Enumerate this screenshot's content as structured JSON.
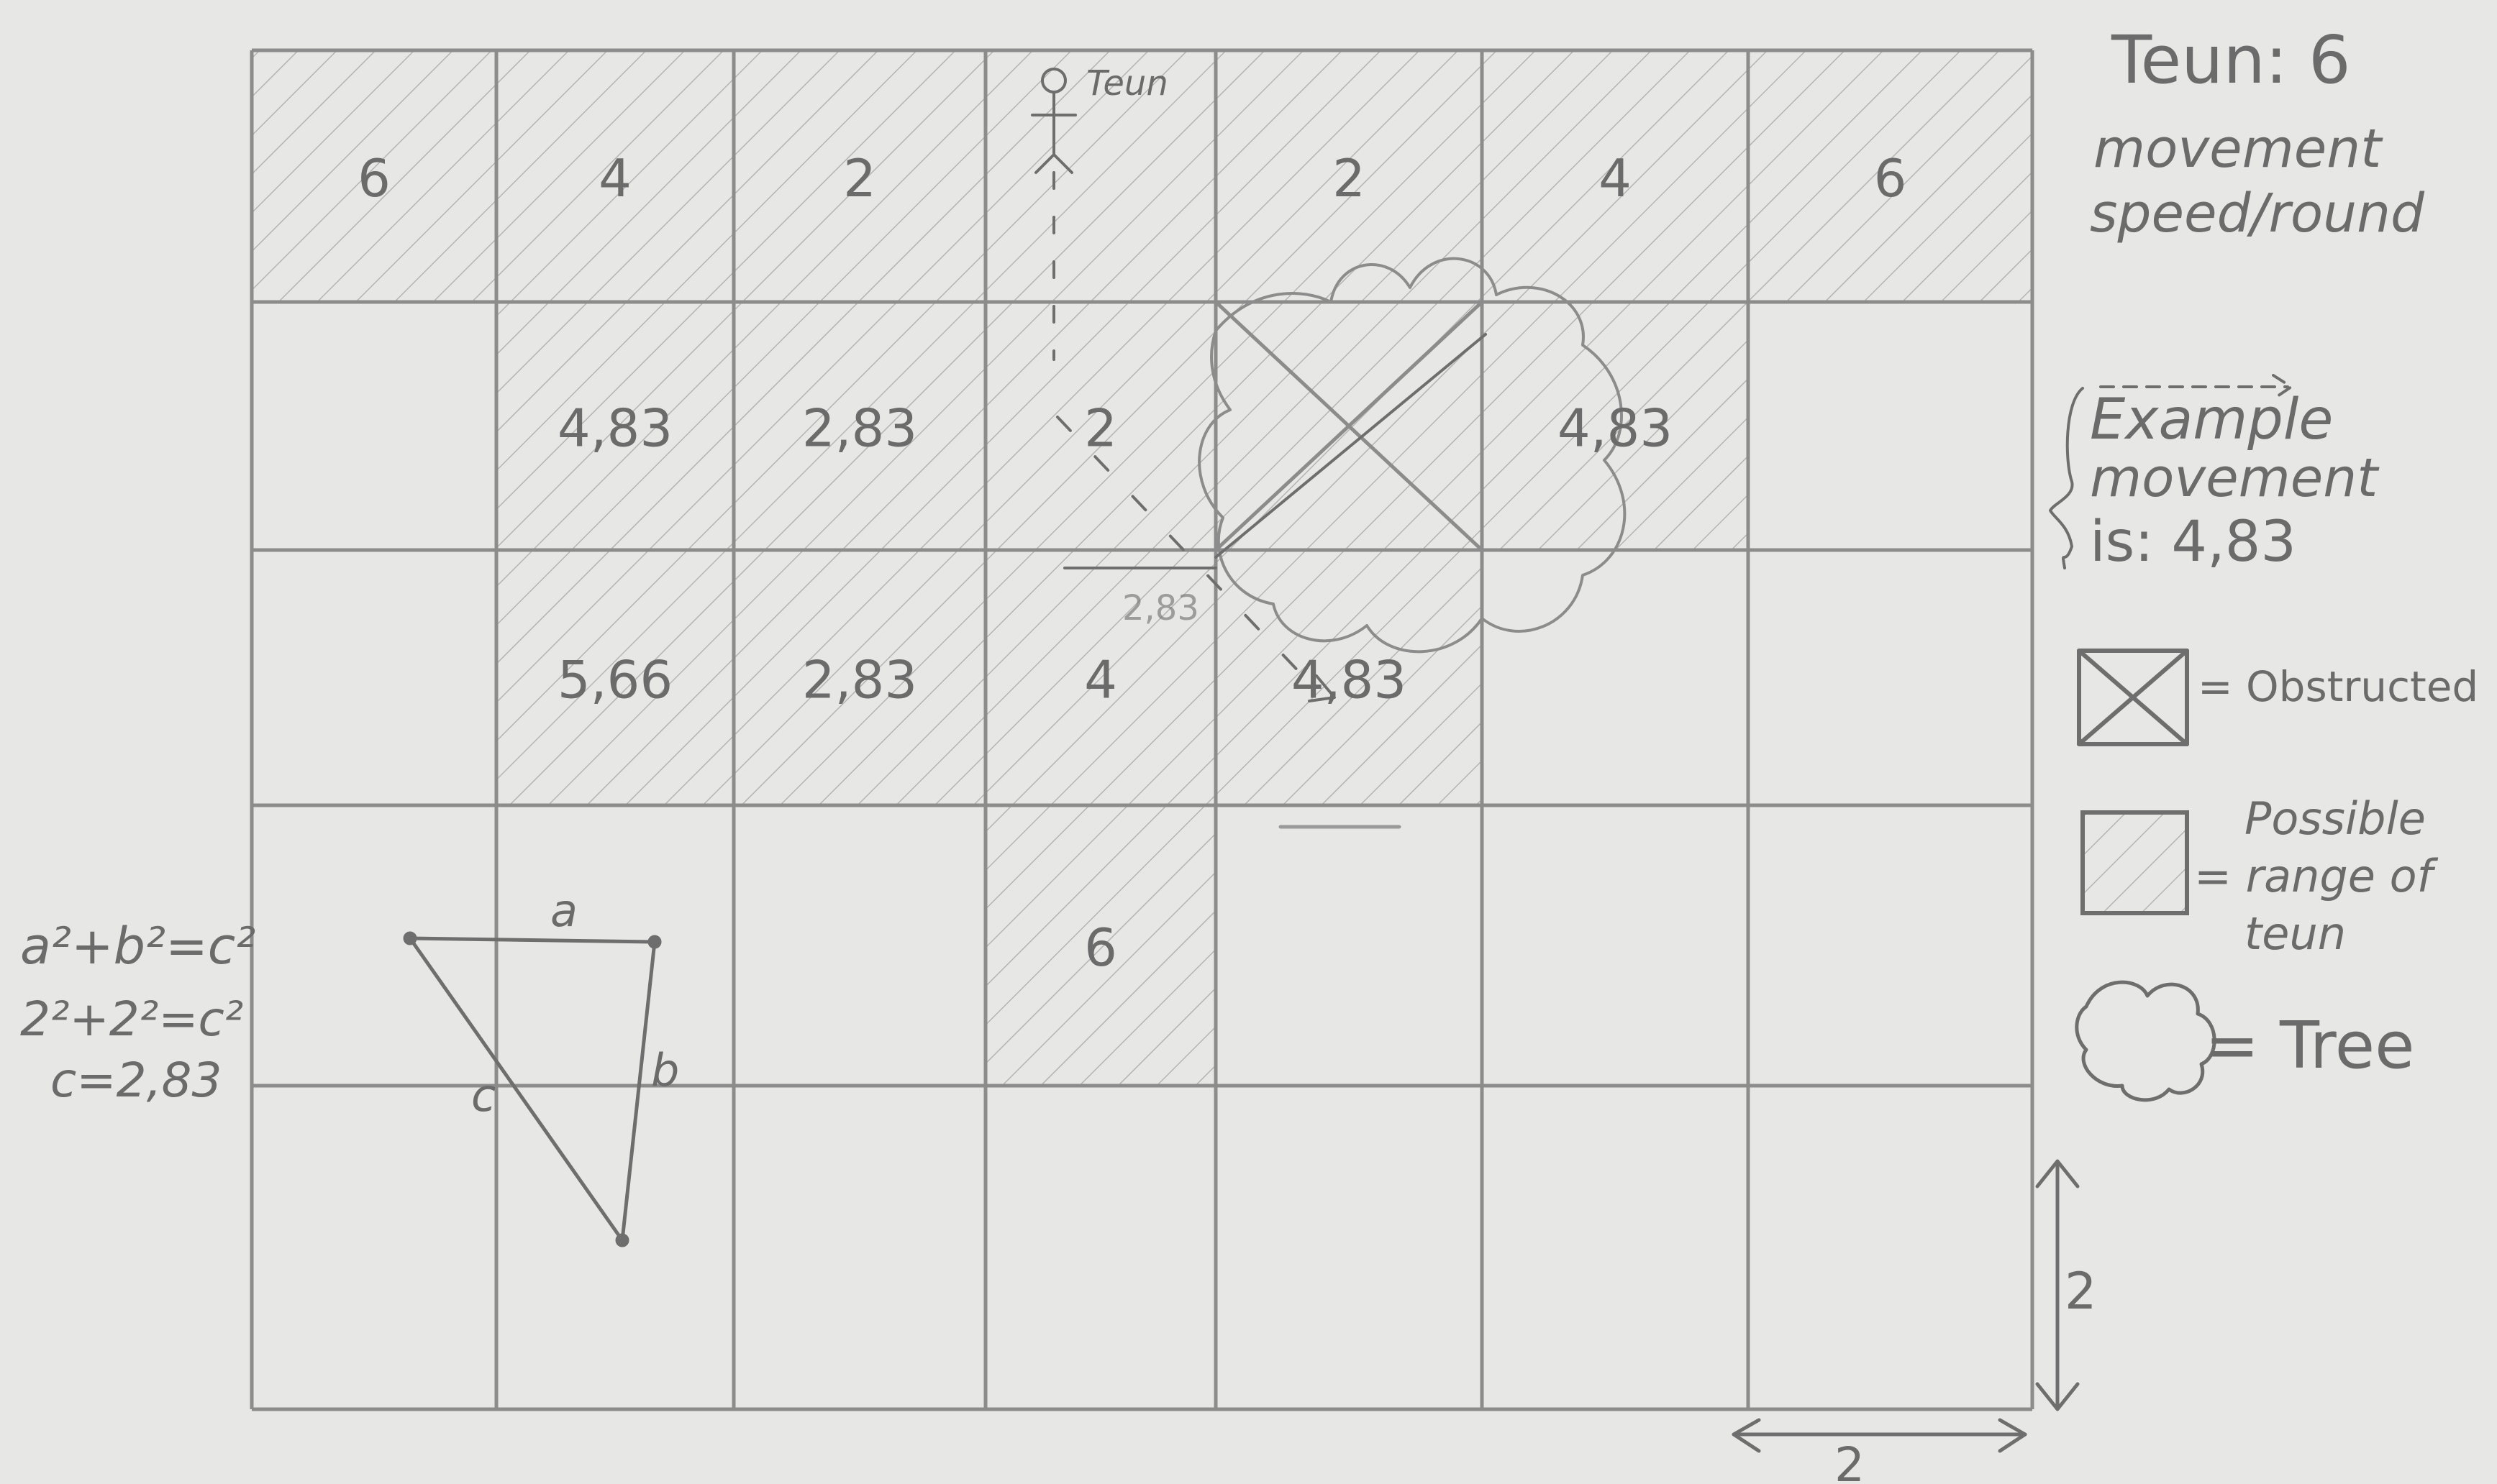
{
  "character": {
    "name": "Teun",
    "title": "Teun: 6",
    "subtitle_line1": "movement",
    "subtitle_line2": "speed/round"
  },
  "grid": {
    "columns": 7,
    "rows": 5,
    "cells": [
      [
        "6",
        "4",
        "2",
        "",
        "2",
        "4",
        "6"
      ],
      [
        "",
        "4,83",
        "2,83",
        "2",
        "",
        "4,83",
        ""
      ],
      [
        "",
        "5,66",
        "2,83",
        "4",
        "4,83",
        "",
        ""
      ],
      [
        "",
        "",
        "",
        "6",
        "",
        "",
        ""
      ],
      [
        "",
        "",
        "",
        "",
        "",
        "",
        ""
      ]
    ],
    "hatched": [
      [
        true,
        true,
        true,
        true,
        true,
        true,
        true
      ],
      [
        false,
        true,
        true,
        true,
        true,
        true,
        false
      ],
      [
        false,
        true,
        true,
        true,
        true,
        false,
        false
      ],
      [
        false,
        false,
        false,
        true,
        false,
        false,
        false
      ],
      [
        false,
        false,
        false,
        false,
        false,
        false,
        false
      ]
    ],
    "obstructed": [
      [
        1,
        4
      ]
    ],
    "tree_cell": [
      1,
      5
    ],
    "teun_position": [
      0,
      3
    ],
    "note_near_path": "2,83"
  },
  "scale": {
    "horizontal": "2",
    "vertical": "2"
  },
  "pythagoras": {
    "line1": "a²+b²=c²",
    "line2": "2²+2²=c²",
    "line3": "c=2,83",
    "label_a": "a",
    "label_b": "b",
    "label_c": "c"
  },
  "example": {
    "line1": "Example",
    "line2": "movement",
    "line3": "is: 4,83"
  },
  "legend": {
    "obstructed": "= Obstructed",
    "possible_line1": "Possible",
    "possible_line2": "= range of",
    "possible_line3": "teun",
    "tree": "= Tree"
  },
  "colors": {
    "paper": "#e7e7e5",
    "pencil": "#8c8c8c",
    "pencil_dark": "#6e6e6e"
  }
}
